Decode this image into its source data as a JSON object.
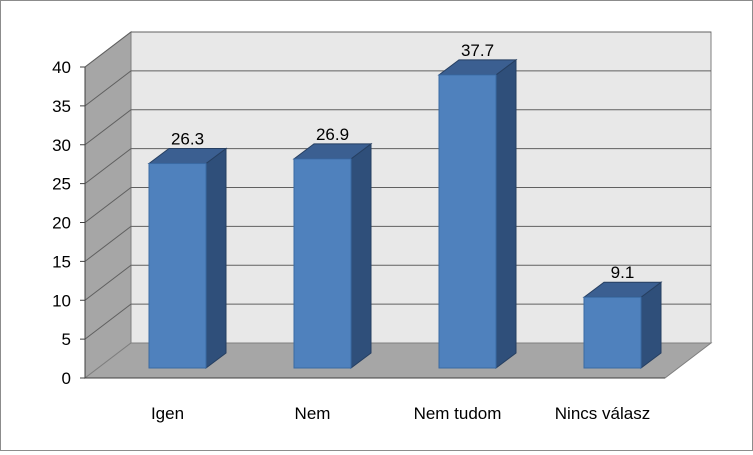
{
  "chart_data": {
    "type": "bar",
    "title": "",
    "xlabel": "",
    "ylabel": "",
    "categories": [
      "Igen",
      "Nem",
      "Nem tudom",
      "Nincs válasz"
    ],
    "values": [
      26.3,
      26.9,
      37.7,
      9.1
    ],
    "data_labels": [
      "26.3",
      "26.9",
      "37.7",
      "9.1"
    ],
    "ylim": [
      0,
      40
    ],
    "yticks": [
      0,
      5,
      10,
      15,
      20,
      25,
      30,
      35,
      40
    ],
    "grid": true,
    "style": "3d-column",
    "colors": {
      "bar_front": "#4f81bd",
      "bar_side": "#2f4f7a",
      "bar_top": "#3b5f91",
      "back_wall": "#e8e8e8",
      "side_wall": "#a6a6a6",
      "floor": "#a6a6a6",
      "grid": "#606060"
    }
  }
}
